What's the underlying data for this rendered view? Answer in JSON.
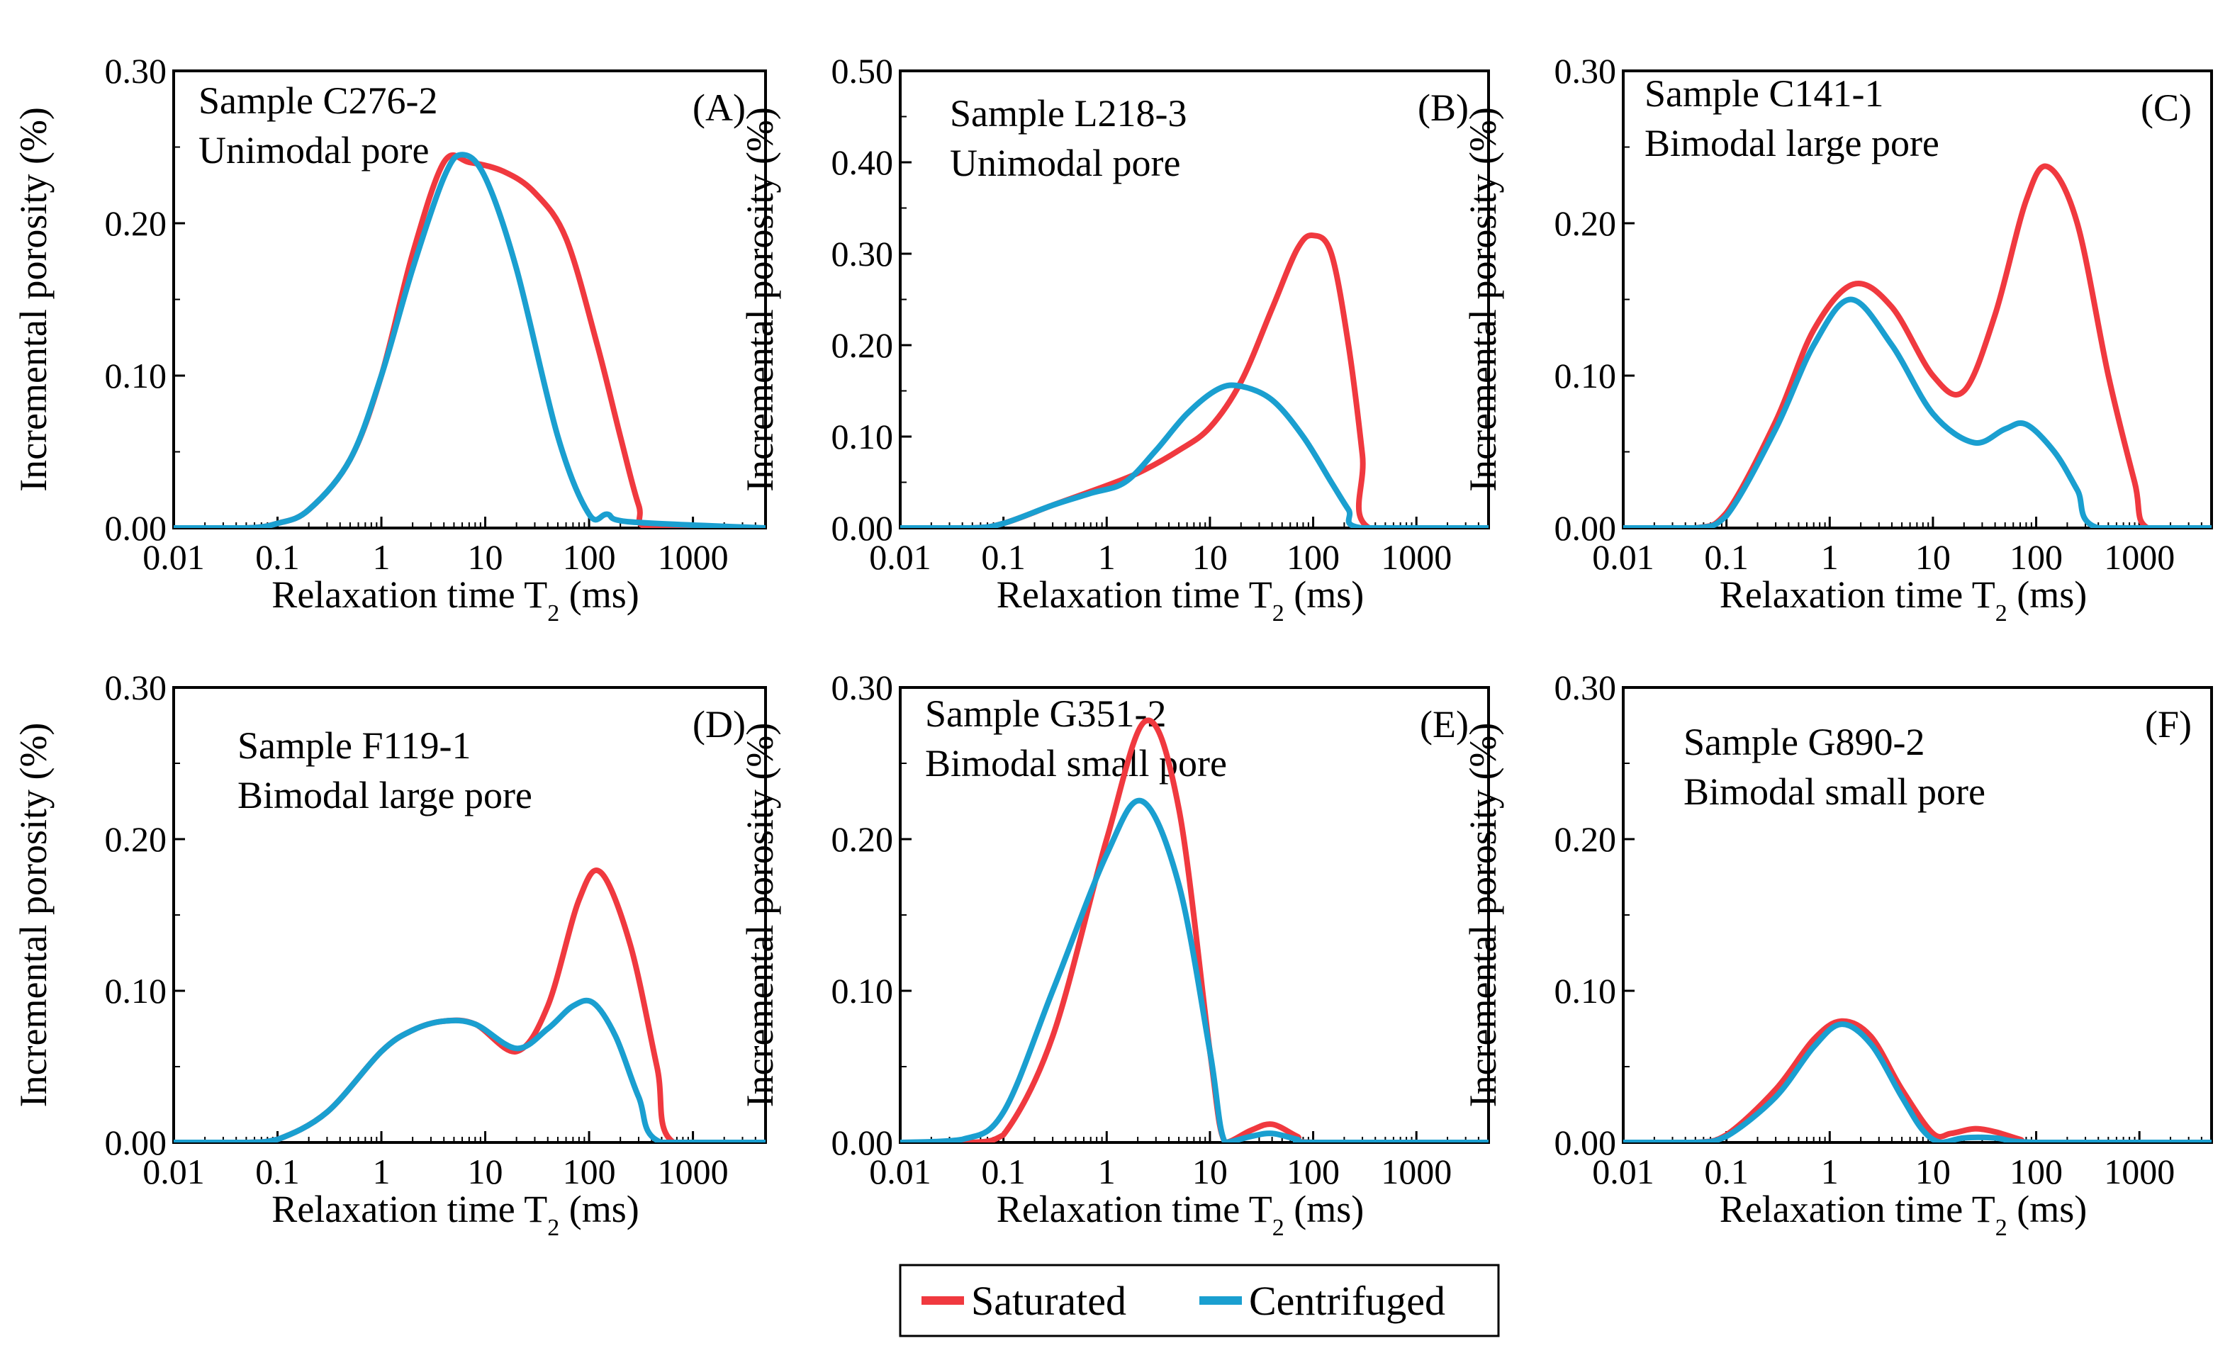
{
  "colors": {
    "saturated": "#f0393f",
    "centrifuged": "#1a9fd0"
  },
  "legend": [
    {
      "key": "saturated",
      "label": "Saturated",
      "color": "#f0393f"
    },
    {
      "key": "centrifuged",
      "label": "Centrifuged",
      "color": "#1a9fd0"
    }
  ],
  "chart_data": [
    {
      "type": "line",
      "panel": "(A)",
      "title": "Sample C276-2",
      "subtitle": "Unimodal pore",
      "xlabel": "Relaxation time T2 (ms)",
      "ylabel": "Incremental porosity (%)",
      "xscale": "log",
      "xlim": [
        0.01,
        5000
      ],
      "ylim": [
        0,
        0.3
      ],
      "xticks": [
        "0.01",
        "0.1",
        "1",
        "10",
        "100",
        "1000"
      ],
      "yticks": [
        "0.00",
        "0.10",
        "0.20",
        "0.30"
      ],
      "series": [
        {
          "name": "Saturated",
          "x": [
            0.01,
            0.05,
            0.1,
            0.2,
            0.5,
            1,
            2,
            4,
            7,
            15,
            30,
            60,
            120,
            200,
            300,
            400,
            5000
          ],
          "y": [
            0,
            0,
            0.003,
            0.012,
            0.045,
            0.1,
            0.18,
            0.24,
            0.24,
            0.234,
            0.22,
            0.19,
            0.12,
            0.06,
            0.015,
            0,
            0
          ]
        },
        {
          "name": "Centrifuged",
          "x": [
            0.01,
            0.05,
            0.1,
            0.2,
            0.5,
            1,
            2,
            4,
            6,
            10,
            20,
            50,
            100,
            150,
            250,
            5000
          ],
          "y": [
            0,
            0,
            0.003,
            0.012,
            0.045,
            0.1,
            0.17,
            0.23,
            0.245,
            0.23,
            0.17,
            0.06,
            0.009,
            0.009,
            0.004,
            0
          ]
        }
      ]
    },
    {
      "type": "line",
      "panel": "(B)",
      "title": "Sample L218-3",
      "subtitle": "Unimodal  pore",
      "xlabel": "Relaxation time T2 (ms)",
      "ylabel": "Incremental porosity (%)",
      "xscale": "log",
      "xlim": [
        0.01,
        5000
      ],
      "ylim": [
        0,
        0.5
      ],
      "xticks": [
        "0.01",
        "0.1",
        "1",
        "10",
        "100",
        "1000"
      ],
      "yticks": [
        "0.00",
        "0.10",
        "0.20",
        "0.30",
        "0.40",
        "0.50"
      ],
      "series": [
        {
          "name": "Saturated",
          "x": [
            0.01,
            0.05,
            0.1,
            0.3,
            0.7,
            2,
            5,
            10,
            20,
            40,
            70,
            100,
            150,
            220,
            300,
            350,
            5000
          ],
          "y": [
            0,
            0,
            0.005,
            0.025,
            0.04,
            0.06,
            0.085,
            0.11,
            0.16,
            0.24,
            0.305,
            0.32,
            0.3,
            0.2,
            0.08,
            0,
            0
          ]
        },
        {
          "name": "Centrifuged",
          "x": [
            0.01,
            0.05,
            0.1,
            0.3,
            0.7,
            1.5,
            3,
            6,
            12,
            20,
            40,
            80,
            150,
            220,
            300,
            5000
          ],
          "y": [
            0,
            0,
            0.005,
            0.025,
            0.038,
            0.05,
            0.085,
            0.125,
            0.152,
            0.155,
            0.14,
            0.1,
            0.05,
            0.02,
            0,
            0
          ]
        }
      ]
    },
    {
      "type": "line",
      "panel": "(C)",
      "title": "Sample C141-1",
      "subtitle": "Bimodal large pore",
      "xlabel": "Relaxation time T2 (ms)",
      "ylabel": "Incremental porosity (%)",
      "xscale": "log",
      "xlim": [
        0.01,
        5000
      ],
      "ylim": [
        0,
        0.3
      ],
      "xticks": [
        "0.01",
        "0.1",
        "1",
        "10",
        "100",
        "1000"
      ],
      "yticks": [
        "0.00",
        "0.10",
        "0.20",
        "0.30"
      ],
      "series": [
        {
          "name": "Saturated",
          "x": [
            0.01,
            0.05,
            0.1,
            0.3,
            0.7,
            1.7,
            4,
            10,
            20,
            40,
            80,
            130,
            250,
            500,
            900,
            1200,
            5000
          ],
          "y": [
            0,
            0,
            0.01,
            0.07,
            0.13,
            0.16,
            0.145,
            0.1,
            0.09,
            0.14,
            0.215,
            0.237,
            0.2,
            0.1,
            0.03,
            0,
            0
          ]
        },
        {
          "name": "Centrifuged",
          "x": [
            0.01,
            0.05,
            0.1,
            0.3,
            0.7,
            1.6,
            4,
            10,
            25,
            50,
            80,
            150,
            250,
            400,
            5000
          ],
          "y": [
            0,
            0,
            0.008,
            0.065,
            0.12,
            0.15,
            0.12,
            0.075,
            0.056,
            0.065,
            0.068,
            0.05,
            0.025,
            0,
            0
          ]
        }
      ]
    },
    {
      "type": "line",
      "panel": "(D)",
      "title": "Sample F119-1",
      "subtitle": "Bimodal large pore",
      "xlabel": "Relaxation time T2 (ms)",
      "ylabel": "Incremental porosity (%)",
      "xscale": "log",
      "xlim": [
        0.01,
        5000
      ],
      "ylim": [
        0,
        0.3
      ],
      "xticks": [
        "0.01",
        "0.1",
        "1",
        "10",
        "100",
        "1000"
      ],
      "yticks": [
        "0.00",
        "0.10",
        "0.20",
        "0.30"
      ],
      "series": [
        {
          "name": "Saturated",
          "x": [
            0.01,
            0.05,
            0.1,
            0.3,
            1,
            2,
            4,
            8,
            20,
            40,
            80,
            130,
            250,
            450,
            650,
            5000
          ],
          "y": [
            0,
            0,
            0.002,
            0.02,
            0.06,
            0.074,
            0.08,
            0.078,
            0.06,
            0.09,
            0.16,
            0.178,
            0.13,
            0.05,
            0,
            0
          ]
        },
        {
          "name": "Centrifuged",
          "x": [
            0.01,
            0.05,
            0.1,
            0.3,
            1,
            2,
            4,
            8,
            20,
            40,
            70,
            110,
            180,
            300,
            500,
            5000
          ],
          "y": [
            0,
            0,
            0.002,
            0.02,
            0.06,
            0.074,
            0.08,
            0.078,
            0.062,
            0.075,
            0.09,
            0.092,
            0.07,
            0.03,
            0,
            0
          ]
        }
      ]
    },
    {
      "type": "line",
      "panel": "(E)",
      "title": "Sample G351-2",
      "subtitle": "Bimodal small pore",
      "xlabel": "Relaxation time T2 (ms)",
      "ylabel": "Incremental porosity (%)",
      "xscale": "log",
      "xlim": [
        0.01,
        5000
      ],
      "ylim": [
        0,
        0.3
      ],
      "xticks": [
        "0.01",
        "0.1",
        "1",
        "10",
        "100",
        "1000"
      ],
      "yticks": [
        "0.00",
        "0.10",
        "0.20",
        "0.30"
      ],
      "series": [
        {
          "name": "Saturated",
          "x": [
            0.01,
            0.05,
            0.1,
            0.3,
            1,
            2.4,
            5,
            10,
            14,
            25,
            40,
            70,
            100,
            5000
          ],
          "y": [
            0,
            0,
            0.005,
            0.07,
            0.2,
            0.278,
            0.22,
            0.06,
            0,
            0.008,
            0.012,
            0.004,
            0,
            0
          ]
        },
        {
          "name": "Centrifuged",
          "x": [
            0.01,
            0.04,
            0.1,
            0.3,
            1,
            2.2,
            5,
            10,
            14,
            25,
            40,
            70,
            100,
            5000
          ],
          "y": [
            0,
            0.002,
            0.02,
            0.1,
            0.19,
            0.225,
            0.17,
            0.06,
            0,
            0.004,
            0.006,
            0.002,
            0,
            0
          ]
        }
      ]
    },
    {
      "type": "line",
      "panel": "(F)",
      "title": "Sample G890-2",
      "subtitle": "Bimodal small pore",
      "xlabel": "Relaxation time T2 (ms)",
      "ylabel": "Incremental porosity (%)",
      "xscale": "log",
      "xlim": [
        0.01,
        5000
      ],
      "ylim": [
        0,
        0.3
      ],
      "xticks": [
        "0.01",
        "0.1",
        "1",
        "10",
        "100",
        "1000"
      ],
      "yticks": [
        "0.00",
        "0.10",
        "0.20",
        "0.30"
      ],
      "series": [
        {
          "name": "Saturated",
          "x": [
            0.01,
            0.05,
            0.1,
            0.3,
            0.7,
            1.3,
            2.5,
            5,
            10,
            15,
            25,
            40,
            70,
            100,
            5000
          ],
          "y": [
            0,
            0,
            0.005,
            0.035,
            0.068,
            0.08,
            0.07,
            0.035,
            0.006,
            0.006,
            0.009,
            0.007,
            0.002,
            0,
            0
          ]
        },
        {
          "name": "Centrifuged",
          "x": [
            0.01,
            0.05,
            0.1,
            0.3,
            0.7,
            1.3,
            2.5,
            5,
            8,
            12,
            20,
            40,
            100,
            5000
          ],
          "y": [
            0,
            0,
            0.004,
            0.03,
            0.063,
            0.078,
            0.065,
            0.03,
            0.008,
            0,
            0.003,
            0.003,
            0,
            0
          ]
        }
      ]
    }
  ]
}
